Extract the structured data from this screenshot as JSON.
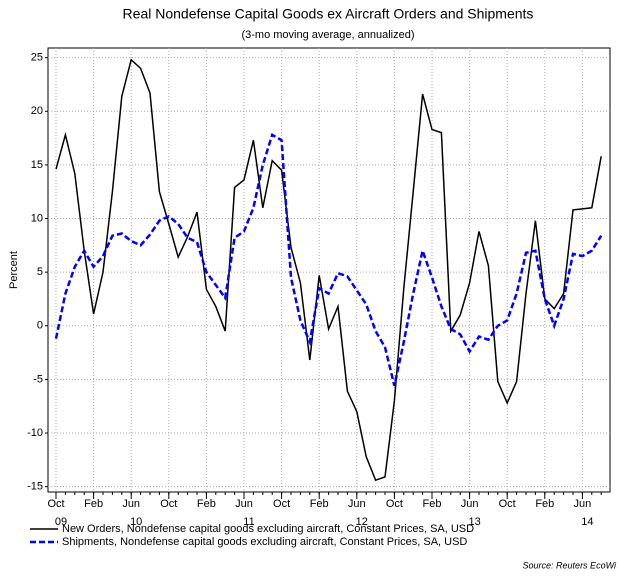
{
  "chart_data": {
    "type": "line",
    "title": "Real Nondefense Capital Goods ex Aircraft Orders and Shipments",
    "subtitle": "(3-mo moving average, annualized)",
    "y_label": "Percent",
    "source": "Source: Reuters EcoWi",
    "x": [
      "2009-10",
      "2009-11",
      "2009-12",
      "2010-01",
      "2010-02",
      "2010-03",
      "2010-04",
      "2010-05",
      "2010-06",
      "2010-07",
      "2010-08",
      "2010-09",
      "2010-10",
      "2010-11",
      "2010-12",
      "2011-01",
      "2011-02",
      "2011-03",
      "2011-04",
      "2011-05",
      "2011-06",
      "2011-07",
      "2011-08",
      "2011-09",
      "2011-10",
      "2011-11",
      "2011-12",
      "2012-01",
      "2012-02",
      "2012-03",
      "2012-04",
      "2012-05",
      "2012-06",
      "2012-07",
      "2012-08",
      "2012-09",
      "2012-10",
      "2012-11",
      "2012-12",
      "2013-01",
      "2013-02",
      "2013-03",
      "2013-04",
      "2013-05",
      "2013-06",
      "2013-07",
      "2013-08",
      "2013-09",
      "2013-10",
      "2013-11",
      "2013-12",
      "2014-01",
      "2014-02",
      "2014-03",
      "2014-04",
      "2014-05",
      "2014-06",
      "2014-07",
      "2014-08"
    ],
    "series": [
      {
        "name": "New Orders, Nondefense capital goods excluding aircraft, Constant Prices, SA, USD",
        "color": "#000000",
        "dashed": false,
        "values": [
          14.6,
          17.8,
          14.2,
          7.0,
          1.1,
          5.0,
          12.5,
          21.4,
          24.8,
          24.0,
          21.7,
          12.5,
          9.5,
          6.4,
          8.3,
          10.6,
          3.4,
          1.8,
          -0.5,
          12.9,
          13.6,
          17.3,
          11.0,
          15.4,
          14.5,
          7.3,
          4.0,
          -3.2,
          4.7,
          -0.3,
          1.8,
          -6.1,
          -8.0,
          -12.2,
          -14.4,
          -14.1,
          -7.0,
          3.5,
          12.5,
          21.6,
          18.3,
          18.0,
          -0.5,
          1.0,
          4.0,
          8.8,
          5.6,
          -5.2,
          -7.2,
          -5.2,
          3.0,
          9.8,
          2.5,
          1.6,
          3.0,
          10.8,
          10.9,
          11.0,
          15.8
        ]
      },
      {
        "name": "Shipments, Nondefense capital goods excluding aircraft, Constant Prices, SA, USD",
        "color": "#0000ff",
        "dashed": true,
        "values": [
          -1.2,
          3.0,
          5.5,
          7.0,
          5.5,
          6.5,
          8.4,
          8.6,
          7.9,
          7.5,
          8.5,
          9.8,
          10.2,
          9.5,
          8.2,
          7.8,
          5.0,
          3.8,
          2.6,
          8.2,
          8.8,
          11.0,
          15.0,
          17.8,
          17.3,
          4.5,
          0.5,
          -1.5,
          3.5,
          3.0,
          4.9,
          4.6,
          3.3,
          2.0,
          -0.5,
          -2.0,
          -5.6,
          -1.5,
          3.0,
          7.0,
          4.5,
          1.8,
          -0.3,
          -0.8,
          -2.4,
          -1.0,
          -1.3,
          0.0,
          0.5,
          3.0,
          6.8,
          7.0,
          2.5,
          0.0,
          2.5,
          6.7,
          6.5,
          7.0,
          8.4
        ]
      }
    ],
    "xticks": [
      {
        "value": "2009-10",
        "label": "Oct"
      },
      {
        "value": "2010-02",
        "label": "Feb"
      },
      {
        "value": "2010-06",
        "label": "Jun"
      },
      {
        "value": "2010-10",
        "label": "Oct"
      },
      {
        "value": "2011-02",
        "label": "Feb"
      },
      {
        "value": "2011-06",
        "label": "Jun"
      },
      {
        "value": "2011-10",
        "label": "Oct"
      },
      {
        "value": "2012-02",
        "label": "Feb"
      },
      {
        "value": "2012-06",
        "label": "Jun"
      },
      {
        "value": "2012-10",
        "label": "Oct"
      },
      {
        "value": "2013-02",
        "label": "Feb"
      },
      {
        "value": "2013-06",
        "label": "Jun"
      },
      {
        "value": "2013-10",
        "label": "Oct"
      },
      {
        "value": "2014-02",
        "label": "Feb"
      },
      {
        "value": "2014-06",
        "label": "Jun"
      }
    ],
    "year_labels": [
      {
        "value": "2009-10",
        "label": "09"
      },
      {
        "value": "2010-06",
        "label": "10"
      },
      {
        "value": "2011-06",
        "label": "11"
      },
      {
        "value": "2012-06",
        "label": "12"
      },
      {
        "value": "2013-06",
        "label": "13"
      },
      {
        "value": "2014-06",
        "label": "14"
      }
    ],
    "ylim": [
      -15.5,
      25.9
    ],
    "yticks": [
      -15,
      -10,
      -5,
      0,
      5,
      10,
      15,
      20,
      25
    ],
    "grid": true
  }
}
